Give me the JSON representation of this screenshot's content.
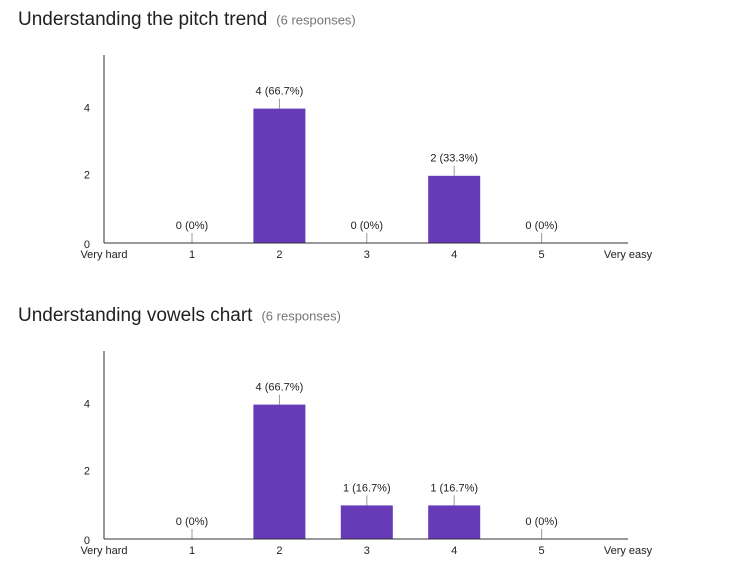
{
  "chart_data": [
    {
      "type": "bar",
      "title": "Understanding the pitch trend",
      "subtitle": "(6 responses)",
      "categories": [
        "1",
        "2",
        "3",
        "4",
        "5"
      ],
      "x_start_label": "Very hard",
      "x_end_label": "Very easy",
      "values": [
        0,
        4,
        0,
        2,
        0
      ],
      "value_labels": [
        "0 (0%)",
        "4 (66.7%)",
        "0 (0%)",
        "2 (33.3%)",
        "0 (0%)"
      ],
      "color": "#673ab7",
      "ylim": [
        0,
        5
      ],
      "yticks": [
        0,
        2,
        4
      ],
      "grid": false
    },
    {
      "type": "bar",
      "title": "Understanding vowels chart",
      "subtitle": "(6 responses)",
      "categories": [
        "1",
        "2",
        "3",
        "4",
        "5"
      ],
      "x_start_label": "Very hard",
      "x_end_label": "Very easy",
      "values": [
        0,
        4,
        1,
        1,
        0
      ],
      "value_labels": [
        "0 (0%)",
        "4 (66.7%)",
        "1 (16.7%)",
        "1 (16.7%)",
        "0 (0%)"
      ],
      "color": "#673ab7",
      "ylim": [
        0,
        5
      ],
      "yticks": [
        0,
        2,
        4
      ],
      "grid": false
    }
  ]
}
